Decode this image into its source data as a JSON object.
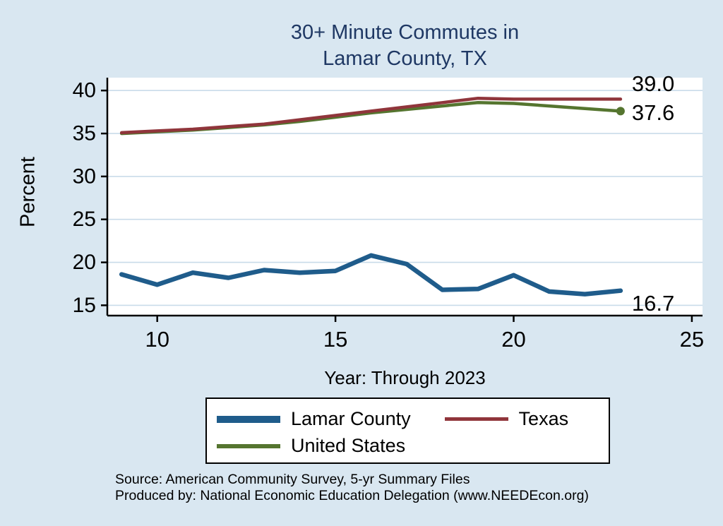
{
  "title": {
    "line1": "30+ Minute Commutes in",
    "line2": "Lamar County, TX"
  },
  "chart_data": {
    "type": "line",
    "title": "30+ Minute Commutes in Lamar County, TX",
    "xlabel": "Year: Through 2023",
    "ylabel": "Percent",
    "x": [
      9,
      10,
      11,
      12,
      13,
      14,
      15,
      16,
      17,
      18,
      19,
      20,
      21,
      22,
      23
    ],
    "series": [
      {
        "name": "Lamar County",
        "color": "#1f5c8b",
        "values": [
          18.6,
          17.4,
          18.8,
          18.2,
          19.1,
          18.8,
          19.0,
          20.8,
          19.8,
          16.8,
          16.9,
          18.5,
          16.6,
          16.3,
          16.7
        ],
        "end_label": "16.7"
      },
      {
        "name": "Texas",
        "color": "#90353b",
        "values": [
          35.1,
          35.3,
          35.5,
          35.8,
          36.1,
          36.6,
          37.1,
          37.6,
          38.1,
          38.6,
          39.1,
          39.0,
          39.0,
          39.0,
          39.0
        ],
        "end_label": "39.0"
      },
      {
        "name": "United States",
        "color": "#55752f",
        "values": [
          35.0,
          35.2,
          35.4,
          35.7,
          36.0,
          36.4,
          36.9,
          37.4,
          37.8,
          38.2,
          38.6,
          38.5,
          38.2,
          37.9,
          37.6
        ],
        "end_label": "37.6"
      }
    ],
    "xticks": [
      10,
      15,
      20,
      25
    ],
    "yticks": [
      15,
      20,
      25,
      30,
      35,
      40
    ],
    "xlim": [
      8.6,
      25.3
    ],
    "ylim": [
      13.8,
      41.5
    ],
    "grid": true,
    "legend_position": "bottom"
  },
  "footer": {
    "source": "Source: American Community Survey, 5-yr Summary Files",
    "produced": "Produced by: National Economic Education Delegation (www.NEEDEcon.org)"
  },
  "colors": {
    "background": "#d9e7f1",
    "plot_background": "#ffffff",
    "title": "#1f3864",
    "grid": "#c9dbe9",
    "axis": "#000000"
  }
}
